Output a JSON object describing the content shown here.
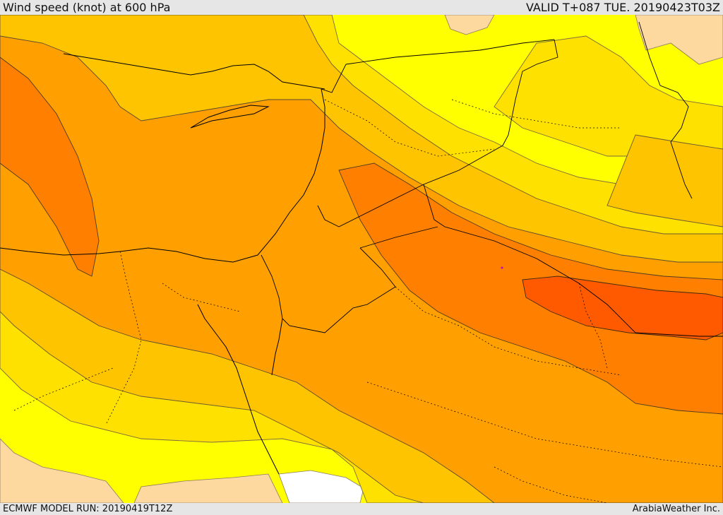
{
  "header": {
    "title": "Wind speed (knot) at 600 hPa",
    "valid": "VALID T+087 TUE. 20190423T03Z"
  },
  "footer": {
    "model_run": "ECMWF MODEL RUN: 20190419T12Z",
    "credit": "ArabiaWeather Inc."
  },
  "map": {
    "field": "wind speed",
    "level_hpa": 600,
    "units": "knot",
    "shading_colors": [
      "#ffffff",
      "#fdd9a0",
      "#ffff00",
      "#ffe100",
      "#ffc400",
      "#ffa000",
      "#ff8000",
      "#ff5a00"
    ]
  }
}
